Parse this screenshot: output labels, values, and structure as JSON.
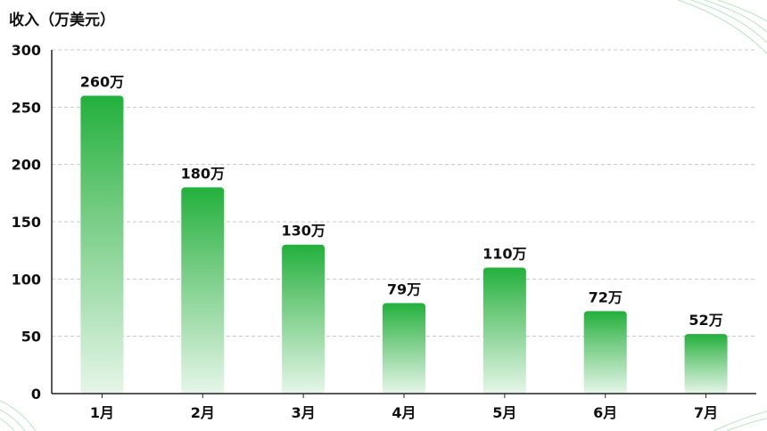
{
  "chart_data": {
    "type": "bar",
    "title": "",
    "ylabel": "收入（万美元）",
    "xlabel": "",
    "categories": [
      "1月",
      "2月",
      "3月",
      "4月",
      "5月",
      "6月",
      "7月"
    ],
    "values": [
      260,
      180,
      130,
      79,
      110,
      72,
      52
    ],
    "data_labels": [
      "260万",
      "180万",
      "130万",
      "79万",
      "110万",
      "72万",
      "52万"
    ],
    "ylim": [
      0,
      300
    ],
    "yticks": [
      0,
      50,
      100,
      150,
      200,
      250,
      300
    ],
    "grid": "horizontal-dashed",
    "legend": "none",
    "colors": {
      "bar_top": "#22b03c",
      "bar_bottom": "#e6f6e9",
      "grid": "#c8c8c8",
      "axis": "#222222",
      "text": "#111111",
      "decoration": "#b9e6c2"
    }
  }
}
